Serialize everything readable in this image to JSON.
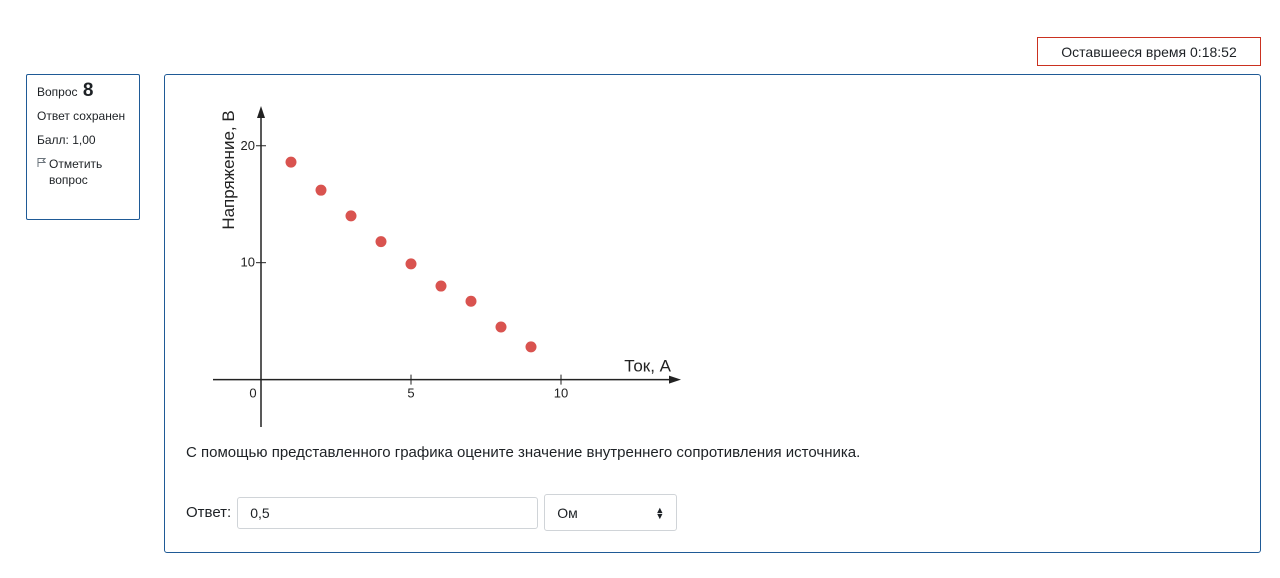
{
  "timer": {
    "label": "Оставшееся время",
    "value": "0:18:52"
  },
  "question_info": {
    "question_word": "Вопрос",
    "number": "8",
    "state": "Ответ сохранен",
    "grade": "Балл: 1,00",
    "flag_label": "Отметить вопрос",
    "flag_icon": "flag-icon"
  },
  "chart_data": {
    "type": "scatter",
    "xlabel": "Ток, А",
    "ylabel": "Напряжение, В",
    "x_ticks": [
      0,
      5,
      10
    ],
    "y_ticks": [
      10,
      20
    ],
    "xlim": [
      -1.6,
      14.0
    ],
    "ylim": [
      -2.6,
      23.4
    ],
    "grid": false,
    "point_color": "#d9534f",
    "points": [
      {
        "x": 1,
        "y": 18.6
      },
      {
        "x": 2,
        "y": 16.2
      },
      {
        "x": 3,
        "y": 14.0
      },
      {
        "x": 4,
        "y": 11.8
      },
      {
        "x": 5,
        "y": 9.9
      },
      {
        "x": 6,
        "y": 8.0
      },
      {
        "x": 7,
        "y": 6.7
      },
      {
        "x": 8,
        "y": 4.5
      },
      {
        "x": 9,
        "y": 2.8
      }
    ]
  },
  "question_text": "С помощью представленного графика оцените значение внутреннего сопротивления источника.",
  "answer": {
    "label": "Ответ:",
    "value": "0,5",
    "unit": "Ом"
  }
}
